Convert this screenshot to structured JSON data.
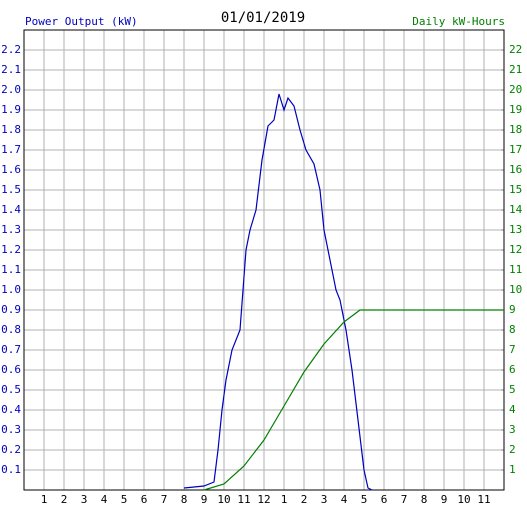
{
  "chart_data": {
    "type": "line",
    "title": "01/01/2019",
    "xlim": [
      0,
      24
    ],
    "xticks": [
      1,
      2,
      3,
      4,
      5,
      6,
      7,
      8,
      9,
      10,
      11,
      12,
      {
        "value": 13,
        "label": "1"
      },
      {
        "value": 14,
        "label": "2"
      },
      {
        "value": 15,
        "label": "3"
      },
      {
        "value": 16,
        "label": "4"
      },
      {
        "value": 17,
        "label": "5"
      },
      {
        "value": 18,
        "label": "6"
      },
      {
        "value": 19,
        "label": "7"
      },
      {
        "value": 20,
        "label": "8"
      },
      {
        "value": 21,
        "label": "9"
      },
      {
        "value": 22,
        "label": "10"
      },
      {
        "value": 23,
        "label": "11"
      }
    ],
    "ylim": [
      0,
      2.3
    ],
    "yticks": [
      0.1,
      0.2,
      0.3,
      0.4,
      0.5,
      0.6,
      0.7,
      0.8,
      0.9,
      {
        "value": 1,
        "label": "1.0"
      },
      1.1,
      1.2,
      1.3,
      1.4,
      1.5,
      1.6,
      1.7,
      1.8,
      1.9,
      {
        "value": 2,
        "label": "2.0"
      },
      2.1,
      2.2
    ],
    "y2lim": [
      0,
      23
    ],
    "y2ticks": [
      1,
      2,
      3,
      4,
      5,
      6,
      7,
      8,
      9,
      10,
      11,
      12,
      13,
      14,
      15,
      16,
      17,
      18,
      19,
      20,
      21,
      22
    ],
    "grid": true,
    "series": [
      {
        "name": "Power Output (kW)",
        "color": "#0000c0",
        "axis": "y",
        "x": [
          8.0,
          9.0,
          9.5,
          9.7,
          9.9,
          10.1,
          10.4,
          10.8,
          11.1,
          11.3,
          11.6,
          11.9,
          12.2,
          12.5,
          12.75,
          13.0,
          13.2,
          13.5,
          13.8,
          14.1,
          14.5,
          14.8,
          15.0,
          15.3,
          15.6,
          15.8,
          16.1,
          16.4,
          16.7,
          17.0,
          17.2,
          17.4
        ],
        "values": [
          0.01,
          0.02,
          0.04,
          0.2,
          0.4,
          0.55,
          0.7,
          0.8,
          1.2,
          1.3,
          1.4,
          1.65,
          1.82,
          1.85,
          1.98,
          1.9,
          1.96,
          1.92,
          1.8,
          1.7,
          1.63,
          1.5,
          1.3,
          1.15,
          1.0,
          0.95,
          0.8,
          0.6,
          0.35,
          0.1,
          0.01,
          0
        ]
      },
      {
        "name": "Daily kW-Hours",
        "color": "#008000",
        "axis": "y2",
        "x": [
          9,
          10,
          11,
          12,
          13,
          14,
          15,
          16,
          16.8,
          24
        ],
        "values": [
          0,
          0.3,
          1.2,
          2.5,
          4.2,
          5.9,
          7.3,
          8.4,
          9,
          9
        ]
      }
    ]
  }
}
